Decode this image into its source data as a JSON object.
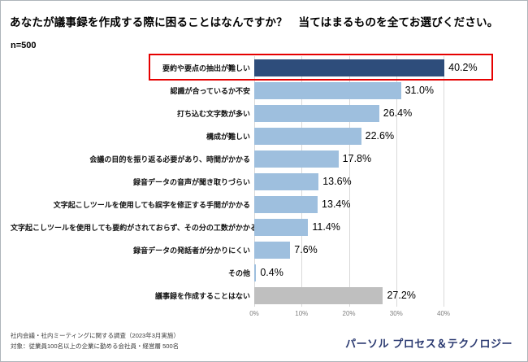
{
  "page": {
    "title": "あなたが議事録を作成する際に困ることはなんですか？　当てはまるものを全てお選びください。",
    "sample_size": "n=500",
    "footnote": {
      "line1": "社内会議・社内ミーティングに関する調査（2023年3月実施）",
      "line2": "対象：従業員100名以上の企業に勤める会社員・経営層 500名"
    },
    "logo_text": "パーソル プロセス＆テクノロジー",
    "brand_color": "#2b3a71"
  },
  "chart_data": {
    "type": "bar",
    "orientation": "horizontal",
    "title": "あなたが議事録を作成する際に困ることはなんですか？　当てはまるものを全てお選びください。",
    "sample": "n=500",
    "categories": [
      "要約や要点の抽出が難しい",
      "認識が合っているか不安",
      "打ち込む文字数が多い",
      "構成が難しい",
      "会議の目的を振り返る必要があり、時間がかかる",
      "録音データの音声が聞き取りづらい",
      "文字起こしツールを使用しても誤字を修正する手間がかかる",
      "文字起こしツールを使用しても要約がされておらず、その分の工数がかかる",
      "録音データの発話者が分かりにくい",
      "その他",
      "議事録を作成することはない"
    ],
    "values": [
      40.2,
      31.0,
      26.4,
      22.6,
      17.8,
      13.6,
      13.4,
      11.4,
      7.6,
      0.4,
      27.2
    ],
    "value_labels": [
      "40.2%",
      "31.0%",
      "26.4%",
      "22.6%",
      "17.8%",
      "13.6%",
      "13.4%",
      "11.4%",
      "7.6%",
      "0.4%",
      "27.2%"
    ],
    "styles": [
      "dark",
      "light",
      "light",
      "light",
      "light",
      "light",
      "light",
      "light",
      "light",
      "light",
      "gray"
    ],
    "colors": {
      "dark": "#2e4d7b",
      "light": "#9ebfde",
      "gray": "#bfbfbf"
    },
    "highlight_index": 0,
    "highlight_color": "#e60000",
    "xlim": [
      0,
      40
    ],
    "x_ticks": [
      "0%",
      "10%",
      "20%",
      "30%",
      "40%"
    ],
    "grid": true,
    "legend": false,
    "xlabel": "",
    "ylabel": ""
  }
}
